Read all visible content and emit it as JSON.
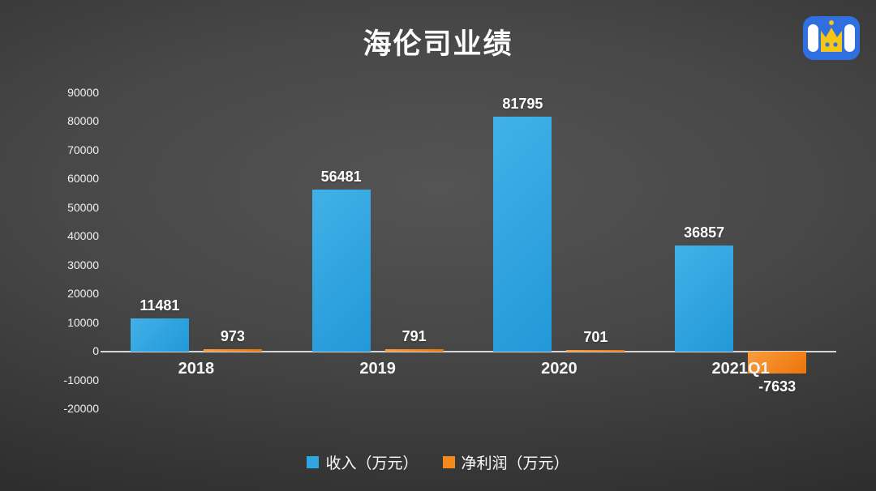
{
  "chart_data": {
    "type": "bar",
    "title": "海伦司业绩",
    "categories": [
      "2018",
      "2019",
      "2020",
      "2021Q1"
    ],
    "series": [
      {
        "key": "revenue",
        "name": "收入（万元）",
        "color": "#2ea7e0",
        "values": [
          11481,
          56481,
          81795,
          36857
        ]
      },
      {
        "key": "profit",
        "name": "净利润（万元）",
        "color": "#f28a1d",
        "values": [
          973,
          791,
          701,
          -7633
        ]
      }
    ],
    "ylim": [
      -20000,
      90000
    ],
    "yticks": [
      90000,
      80000,
      70000,
      60000,
      50000,
      40000,
      30000,
      20000,
      10000,
      0,
      -10000,
      -20000
    ],
    "grid": false,
    "legend_position": "bottom",
    "value_labels_visible": true
  },
  "colors": {
    "background_center": "#505050",
    "background_edge": "#1d1d1d",
    "text": "#ffffff",
    "axis": "#d6d6d6",
    "revenue_blue": "#2ea7e0",
    "profit_orange": "#f28a1d",
    "logo_blue": "#2f6fe0",
    "logo_yellow": "#f5c518"
  },
  "logo": {
    "name": "brand-logo"
  }
}
